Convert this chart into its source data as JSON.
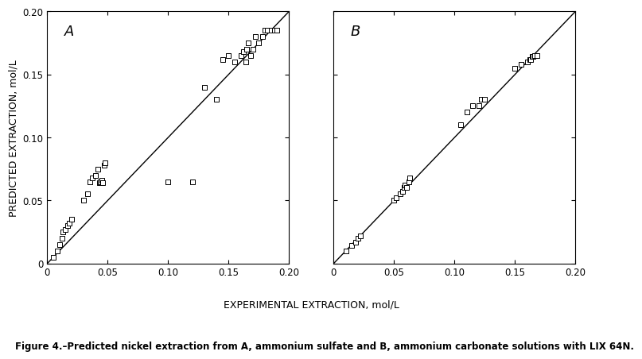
{
  "panel_A_x": [
    0.005,
    0.008,
    0.01,
    0.012,
    0.013,
    0.015,
    0.017,
    0.018,
    0.02,
    0.03,
    0.033,
    0.035,
    0.037,
    0.04,
    0.042,
    0.043,
    0.044,
    0.045,
    0.046,
    0.047,
    0.048,
    0.1,
    0.12,
    0.13,
    0.14,
    0.145,
    0.15,
    0.155,
    0.16,
    0.162,
    0.164,
    0.165,
    0.166,
    0.168,
    0.17,
    0.172,
    0.175,
    0.178,
    0.18,
    0.182,
    0.185,
    0.188,
    0.19
  ],
  "panel_A_y": [
    0.005,
    0.01,
    0.015,
    0.02,
    0.025,
    0.027,
    0.03,
    0.032,
    0.035,
    0.05,
    0.055,
    0.065,
    0.068,
    0.07,
    0.075,
    0.064,
    0.065,
    0.066,
    0.064,
    0.078,
    0.08,
    0.065,
    0.065,
    0.14,
    0.13,
    0.162,
    0.165,
    0.16,
    0.165,
    0.168,
    0.16,
    0.17,
    0.175,
    0.165,
    0.17,
    0.18,
    0.175,
    0.18,
    0.185,
    0.185,
    0.185,
    0.185,
    0.185
  ],
  "panel_B_x": [
    0.01,
    0.015,
    0.018,
    0.02,
    0.022,
    0.05,
    0.052,
    0.055,
    0.057,
    0.058,
    0.059,
    0.06,
    0.062,
    0.063,
    0.105,
    0.11,
    0.115,
    0.12,
    0.122,
    0.125,
    0.15,
    0.155,
    0.16,
    0.162,
    0.163,
    0.164,
    0.165,
    0.166,
    0.168
  ],
  "panel_B_y": [
    0.01,
    0.014,
    0.017,
    0.02,
    0.022,
    0.05,
    0.052,
    0.055,
    0.057,
    0.06,
    0.062,
    0.06,
    0.065,
    0.068,
    0.11,
    0.12,
    0.125,
    0.125,
    0.13,
    0.13,
    0.155,
    0.158,
    0.16,
    0.162,
    0.162,
    0.164,
    0.164,
    0.165,
    0.165
  ],
  "xlim": [
    0,
    0.2
  ],
  "ylim": [
    0,
    0.2
  ],
  "xticks": [
    0,
    0.05,
    0.1,
    0.15,
    0.2
  ],
  "yticks": [
    0,
    0.05,
    0.1,
    0.15,
    0.2
  ],
  "xtick_labels": [
    "0",
    "0.05",
    "0.10",
    "0.15",
    "0.20"
  ],
  "ytick_labels": [
    "0",
    "0.05",
    "0.10",
    "0.15",
    "0.20"
  ],
  "xlabel": "EXPERIMENTAL EXTRACTION, mol/L",
  "ylabel": "PREDICTED EXTRACTION, mol/L",
  "label_A": "A",
  "label_B": "B",
  "marker": "s",
  "marker_size": 20,
  "marker_color": "white",
  "marker_edge_color": "black",
  "marker_edge_width": 0.7,
  "line_color": "black",
  "line_width": 1.0,
  "fig_caption": "Figure 4.–Predicted nickel extraction from A, ammonium sulfate and B, ammonium carbonate solutions with LIX 64N.",
  "background_color": "white",
  "tick_label_size": 8.5,
  "axis_label_size": 9,
  "caption_size": 8.5,
  "panel_label_size": 13
}
